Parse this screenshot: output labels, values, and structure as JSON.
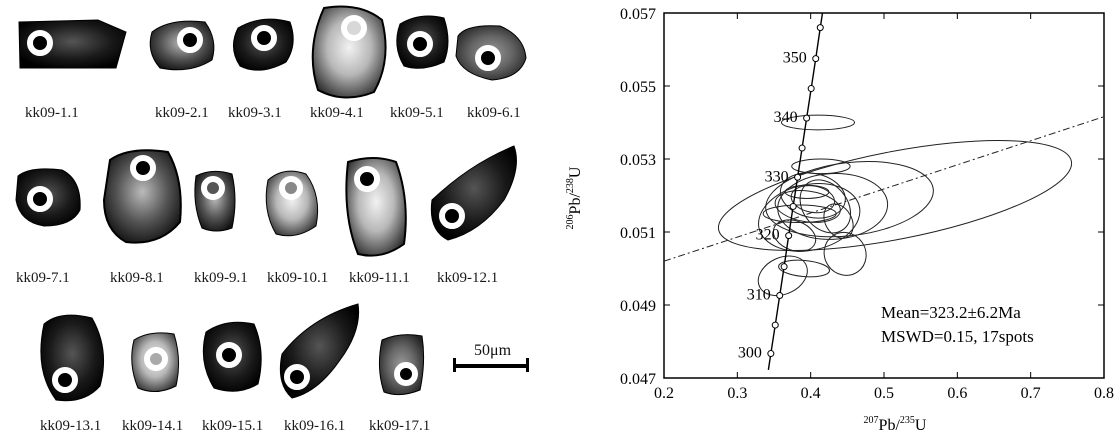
{
  "cl_images": {
    "grains": [
      {
        "label": "kk09-1.1"
      },
      {
        "label": "kk09-2.1"
      },
      {
        "label": "kk09-3.1"
      },
      {
        "label": "kk09-4.1"
      },
      {
        "label": "kk09-5.1"
      },
      {
        "label": "kk09-6.1"
      },
      {
        "label": "kk09-7.1"
      },
      {
        "label": "kk09-8.1"
      },
      {
        "label": "kk09-9.1"
      },
      {
        "label": "kk09-10.1"
      },
      {
        "label": "kk09-11.1"
      },
      {
        "label": "kk09-12.1"
      },
      {
        "label": "kk09-13.1"
      },
      {
        "label": "kk09-14.1"
      },
      {
        "label": "kk09-15.1"
      },
      {
        "label": "kk09-16.1"
      },
      {
        "label": "kk09-17.1"
      }
    ],
    "scale_bar": "50μm"
  },
  "chart_data": {
    "type": "scatter",
    "subtype": "concordia-diagram",
    "x": {
      "label_sup": "207",
      "label_mid": "Pb/",
      "label_sup2": "235",
      "label_end": "U",
      "range": [
        0.2,
        0.8
      ],
      "ticks": [
        "0.2",
        "0.3",
        "0.4",
        "0.5",
        "0.6",
        "0.7",
        "0.8"
      ]
    },
    "y": {
      "label_sup": "206",
      "label_mid": "Pb/",
      "label_sup2": "238",
      "label_end": "U",
      "range": [
        0.047,
        0.057
      ],
      "ticks": [
        "0.047",
        "0.049",
        "0.051",
        "0.053",
        "0.055",
        "0.057"
      ]
    },
    "concordia_ages": [
      {
        "label": "300",
        "x": 0.3457,
        "y": 0.04767
      },
      {
        "label": "",
        "x": 0.3517,
        "y": 0.04845
      },
      {
        "label": "310",
        "x": 0.3578,
        "y": 0.04926
      },
      {
        "label": "",
        "x": 0.3638,
        "y": 0.05005
      },
      {
        "label": "320",
        "x": 0.37,
        "y": 0.0509
      },
      {
        "label": "",
        "x": 0.3761,
        "y": 0.0517
      },
      {
        "label": "330",
        "x": 0.3822,
        "y": 0.0525
      },
      {
        "label": "",
        "x": 0.3883,
        "y": 0.0533
      },
      {
        "label": "340",
        "x": 0.3945,
        "y": 0.05412
      },
      {
        "label": "",
        "x": 0.4007,
        "y": 0.05493
      },
      {
        "label": "350",
        "x": 0.4069,
        "y": 0.05575
      },
      {
        "label": "",
        "x": 0.4131,
        "y": 0.0566
      }
    ],
    "error_ellipses": [
      {
        "cx": 0.515,
        "cy": 0.052,
        "rx": 0.245,
        "ry": 0.0012,
        "angle": 11
      },
      {
        "cx": 0.453,
        "cy": 0.0519,
        "rx": 0.115,
        "ry": 0.001,
        "angle": 7
      },
      {
        "cx": 0.43,
        "cy": 0.0517,
        "rx": 0.075,
        "ry": 0.0009,
        "angle": 3
      },
      {
        "cx": 0.398,
        "cy": 0.0514,
        "rx": 0.07,
        "ry": 0.0009,
        "angle": 12
      },
      {
        "cx": 0.403,
        "cy": 0.052,
        "rx": 0.03,
        "ry": 0.0009,
        "angle": 78
      },
      {
        "cx": 0.41,
        "cy": 0.054,
        "rx": 0.01,
        "ry": 0.001,
        "angle": 90
      },
      {
        "cx": 0.414,
        "cy": 0.0528,
        "rx": 0.01,
        "ry": 0.0008,
        "angle": 90
      },
      {
        "cx": 0.396,
        "cy": 0.0517,
        "rx": 0.021,
        "ry": 0.0009,
        "angle": 82
      },
      {
        "cx": 0.385,
        "cy": 0.0515,
        "rx": 0.012,
        "ry": 0.001,
        "angle": 90
      },
      {
        "cx": 0.403,
        "cy": 0.0519,
        "rx": 0.018,
        "ry": 0.0006,
        "angle": 80
      },
      {
        "cx": 0.378,
        "cy": 0.0509,
        "rx": 0.02,
        "ry": 0.0006,
        "angle": 70
      },
      {
        "cx": 0.438,
        "cy": 0.0513,
        "rx": 0.018,
        "ry": 0.0005,
        "angle": 30
      },
      {
        "cx": 0.447,
        "cy": 0.0504,
        "rx": 0.028,
        "ry": 0.0006,
        "angle": 35
      },
      {
        "cx": 0.362,
        "cy": 0.0498,
        "rx": 0.035,
        "ry": 0.0005,
        "angle": 25
      },
      {
        "cx": 0.391,
        "cy": 0.05,
        "rx": 0.011,
        "ry": 0.0007,
        "angle": 85
      },
      {
        "cx": 0.395,
        "cy": 0.0521,
        "rx": 0.009,
        "ry": 0.0006,
        "angle": 90
      },
      {
        "cx": 0.42,
        "cy": 0.0517,
        "rx": 0.03,
        "ry": 0.0008,
        "angle": 40
      }
    ],
    "regression_line": {
      "slope": 0.0066,
      "intercept": 0.04888,
      "style": "dash-dot"
    },
    "annotation": [
      "Mean=323.2±6.2Ma",
      "MSWD=0.15, 17spots"
    ]
  }
}
